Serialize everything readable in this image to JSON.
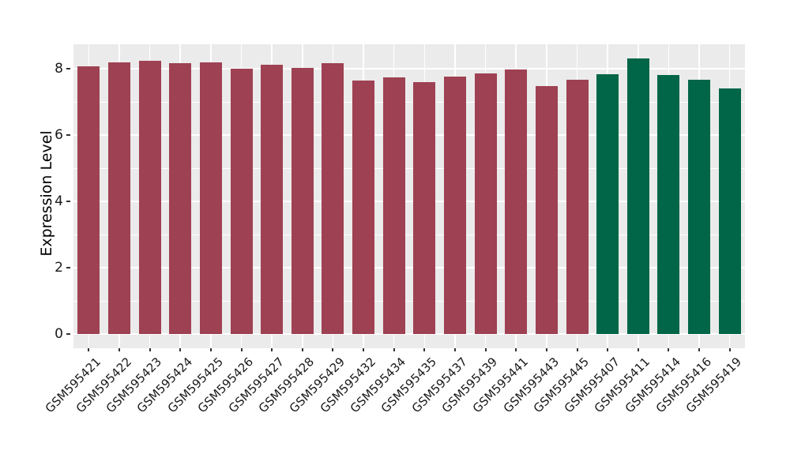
{
  "chart_data": {
    "type": "bar",
    "title": "",
    "xlabel": "",
    "ylabel": "Expression Level",
    "categories": [
      "GSM595421",
      "GSM595422",
      "GSM595423",
      "GSM595424",
      "GSM595425",
      "GSM595426",
      "GSM595427",
      "GSM595428",
      "GSM595429",
      "GSM595432",
      "GSM595434",
      "GSM595435",
      "GSM595437",
      "GSM595439",
      "GSM595441",
      "GSM595443",
      "GSM595445",
      "GSM595407",
      "GSM595411",
      "GSM595414",
      "GSM595416",
      "GSM595419"
    ],
    "values": [
      8.06,
      8.2,
      8.25,
      8.17,
      8.19,
      8.01,
      8.13,
      8.03,
      8.17,
      7.65,
      7.74,
      7.6,
      7.77,
      7.86,
      7.97,
      7.48,
      7.67,
      7.84,
      8.32,
      7.82,
      7.67,
      7.4
    ],
    "bar_colors": [
      "#9e4152",
      "#9e4152",
      "#9e4152",
      "#9e4152",
      "#9e4152",
      "#9e4152",
      "#9e4152",
      "#9e4152",
      "#9e4152",
      "#9e4152",
      "#9e4152",
      "#9e4152",
      "#9e4152",
      "#9e4152",
      "#9e4152",
      "#9e4152",
      "#9e4152",
      "#006647",
      "#006647",
      "#006647",
      "#006647",
      "#006647"
    ],
    "group_colors": {
      "group1": "#9e4152",
      "group2": "#006647"
    },
    "yticks": [
      0,
      2,
      4,
      6,
      8
    ],
    "yticks_minor": [
      1,
      3,
      5,
      7
    ],
    "ylim": [
      0,
      8.74
    ],
    "grid": true,
    "legend_position": "none",
    "panel_background": "#ebebeb",
    "grid_color": "#ffffff"
  }
}
